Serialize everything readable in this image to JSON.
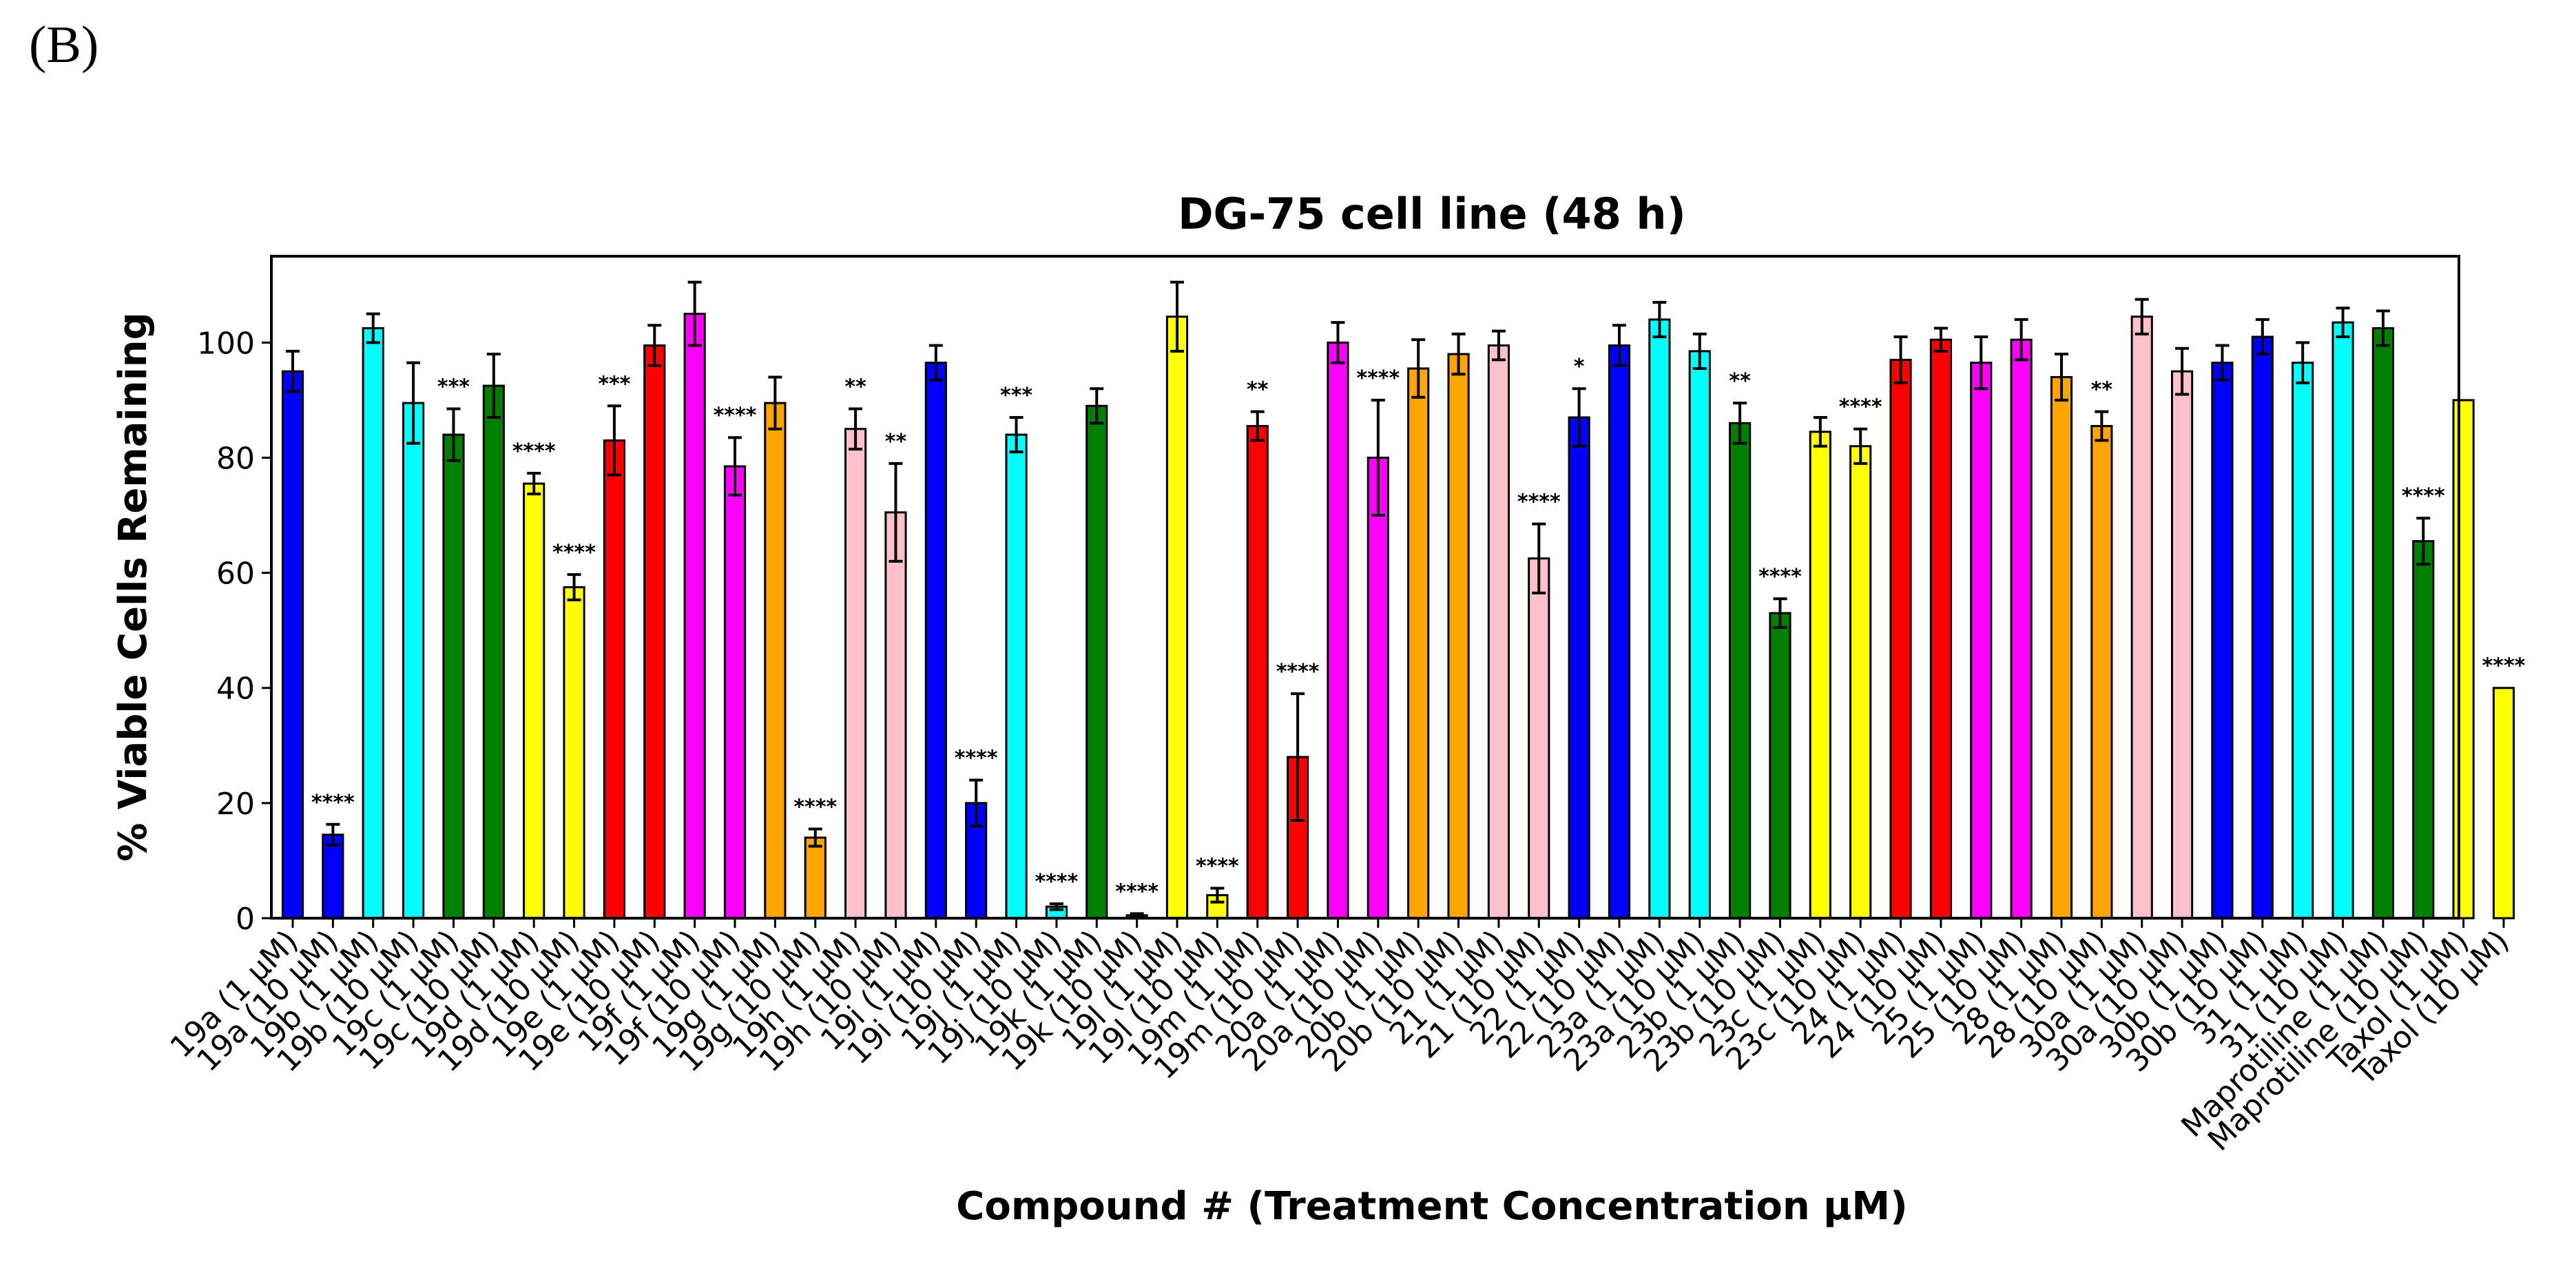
{
  "panel_label": "(B)",
  "chart_data": {
    "type": "bar",
    "title": "DG-75 cell line (48 h)",
    "xlabel": "Compound # (Treatment Concentration μM)",
    "ylabel": "% Viable Cells Remaining",
    "ylim": [
      0,
      115
    ],
    "yticks": [
      0,
      20,
      40,
      60,
      80,
      100
    ],
    "grid": false,
    "categories": [
      "19a (1 μM)",
      "19a (10 μM)",
      "19b (1 μM)",
      "19b (10 μM)",
      "19c (1 μM)",
      "19c (10 μM)",
      "19d (1 μM)",
      "19d (10 μM)",
      "19e (1 μM)",
      "19e (10 μM)",
      "19f (1 μM)",
      "19f (10 μM)",
      "19g (1 μM)",
      "19g (10 μM)",
      "19h (1 μM)",
      "19h (10 μM)",
      "19i (1 μM)",
      "19i (10 μM)",
      "19j (1 μM)",
      "19j (10 μM)",
      "19k (1 μM)",
      "19k (10 μM)",
      "19l (1 μM)",
      "19l (10 μM)",
      "19m (1 μM)",
      "19m (10 μM)",
      "20a (1 μM)",
      "20a (10 μM)",
      "20b (1 μM)",
      "20b (10 μM)",
      "21 (1 μM)",
      "21 (10 μM)",
      "22 (1 μM)",
      "22 (10 μM)",
      "23a (1 μM)",
      "23a (10 μM)",
      "23b (1 μM)",
      "23b (10 μM)",
      "23c (1 μM)",
      "23c (10 μM)",
      "24 (1 μM)",
      "24 (10 μM)",
      "25 (1 μM)",
      "25 (10 μM)",
      "28 (1 μM)",
      "28 (10 μM)",
      "30a (1 μM)",
      "30a (10 μM)",
      "30b (1 μM)",
      "30b (10 μM)",
      "31 (1 μM)",
      "31 (10 μM)",
      "Maprotiline (1 μM)",
      "Maprotiline (10 μM)",
      "Taxol (1 μM)",
      "Taxol (10 μM)"
    ],
    "values": [
      95,
      14.5,
      102.5,
      89.5,
      84,
      92.5,
      75.5,
      57.5,
      83,
      99.5,
      105,
      78.5,
      89.5,
      14,
      85,
      70.5,
      96.5,
      20,
      84,
      2,
      89,
      0.5,
      104.5,
      4,
      85.5,
      28,
      100,
      80,
      95.5,
      98,
      99.5,
      62.5,
      87,
      99.5,
      104,
      98.5,
      86,
      53,
      84.5,
      82,
      97,
      100.5,
      96.5,
      100.5,
      94,
      85.5,
      104.5,
      95,
      96.5,
      101,
      96.5,
      103.5,
      102.5,
      65.5,
      90,
      40
    ],
    "errors": [
      3.5,
      1.8,
      2.5,
      7,
      4.5,
      5.5,
      1.8,
      2.2,
      6,
      3.5,
      5.5,
      5,
      4.5,
      1.5,
      3.5,
      8.5,
      3,
      4,
      3,
      0.5,
      3,
      0.3,
      6,
      1.2,
      2.5,
      11,
      3.5,
      10,
      5,
      3.5,
      2.5,
      6,
      5,
      3.5,
      3,
      3,
      3.5,
      2.5,
      2.5,
      3,
      4,
      2,
      4.5,
      3.5,
      4,
      2.5,
      3,
      4,
      3,
      3,
      3.5,
      2.5,
      3,
      4,
      0,
      0
    ],
    "colors": [
      "#0000ff",
      "#0000ff",
      "#00ffff",
      "#00ffff",
      "#008000",
      "#008000",
      "#ffff00",
      "#ffff00",
      "#ff0000",
      "#ff0000",
      "#ff00ff",
      "#ff00ff",
      "#ffa500",
      "#ffa500",
      "#ffc0cb",
      "#ffc0cb",
      "#0000ff",
      "#0000ff",
      "#00ffff",
      "#00ffff",
      "#008000",
      "#008000",
      "#ffff00",
      "#ffff00",
      "#ff0000",
      "#ff0000",
      "#ff00ff",
      "#ff00ff",
      "#ffa500",
      "#ffa500",
      "#ffc0cb",
      "#ffc0cb",
      "#0000ff",
      "#0000ff",
      "#00ffff",
      "#00ffff",
      "#008000",
      "#008000",
      "#ffff00",
      "#ffff00",
      "#ff0000",
      "#ff0000",
      "#ff00ff",
      "#ff00ff",
      "#ffa500",
      "#ffa500",
      "#ffc0cb",
      "#ffc0cb",
      "#0000ff",
      "#0000ff",
      "#00ffff",
      "#00ffff",
      "#008000",
      "#008000",
      "#ffff00",
      "#ffff00"
    ],
    "significance": [
      "",
      "****",
      "",
      "",
      "***",
      "",
      "****",
      "****",
      "***",
      "",
      "",
      "****",
      "",
      "****",
      "**",
      "**",
      "",
      "****",
      "***",
      "****",
      "",
      "****",
      "",
      "****",
      "**",
      "****",
      "",
      "****",
      "",
      "",
      "",
      "****",
      "*",
      "",
      "",
      "",
      "**",
      "****",
      "",
      "****",
      "",
      "",
      "",
      "",
      "",
      "**",
      "",
      "",
      "",
      "",
      "",
      "",
      "",
      "****",
      "",
      "****"
    ]
  }
}
